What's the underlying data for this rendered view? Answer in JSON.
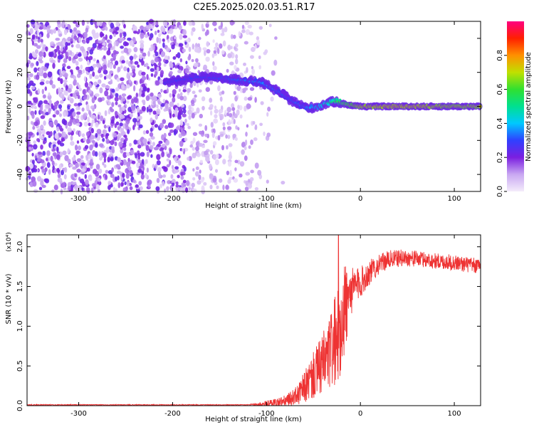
{
  "title": "C2E5.2025.020.03.51.R17",
  "chart_data": [
    {
      "type": "heatmap",
      "xlabel": "Height of straight line (km)",
      "ylabel": "Frequency (Hz)",
      "xlim": [
        -355,
        128
      ],
      "ylim": [
        -50,
        50
      ],
      "xticks": [
        -300,
        -200,
        -100,
        0,
        100
      ],
      "yticks": [
        -40,
        -20,
        0,
        20,
        40
      ],
      "colorbar": {
        "label": "Normalized spectral amplitude",
        "range": [
          0,
          1
        ],
        "ticks": [
          "0.0",
          "0.2",
          "0.4",
          "0.6",
          "0.8"
        ],
        "colors": [
          "#f4ecfb",
          "#c9a8f2",
          "#7b1fe0",
          "#3040ff",
          "#00c8ff",
          "#00e090",
          "#30e030",
          "#c0e000",
          "#ff9000",
          "#ff2000",
          "#ff0080"
        ]
      },
      "noise_region": {
        "x": [
          -355,
          -100
        ],
        "amplitude_level": 0.2
      },
      "signal_track": {
        "x": [
          -208,
          -175,
          -160,
          -140,
          -120,
          -105,
          -95,
          -85,
          -75,
          -65,
          -55,
          -45,
          -35,
          -25,
          -15,
          0,
          30,
          60,
          90,
          128
        ],
        "y": [
          14,
          17,
          17,
          16,
          15,
          14,
          11,
          8,
          4,
          1,
          -1,
          0,
          2,
          3,
          1,
          0,
          0,
          0,
          0,
          0
        ],
        "amplitude": [
          0.3,
          0.3,
          0.3,
          0.32,
          0.35,
          0.38,
          0.35,
          0.32,
          0.3,
          0.35,
          0.4,
          0.45,
          0.5,
          0.6,
          0.7,
          0.82,
          0.85,
          0.85,
          0.8,
          0.8
        ]
      }
    },
    {
      "type": "line",
      "xlabel": "Height of straight line (km)",
      "ylabel": "SNR (10 * v/v)",
      "y_multiplier": "(x10⁴)",
      "xlim": [
        -355,
        128
      ],
      "ylim": [
        0,
        2.15
      ],
      "xticks": [
        -300,
        -200,
        -100,
        0,
        100
      ],
      "yticks": [
        "0.0",
        "0.5",
        "1.0",
        "1.5",
        "2.0"
      ],
      "color": "#ee3333",
      "envelope": {
        "x": [
          -355,
          -120,
          -100,
          -80,
          -65,
          -55,
          -45,
          -35,
          -25,
          -18,
          -12,
          -5,
          0,
          10,
          20,
          30,
          45,
          60,
          80,
          100,
          128
        ],
        "y": [
          0.01,
          0.01,
          0.02,
          0.05,
          0.15,
          0.3,
          0.45,
          0.6,
          0.85,
          1.2,
          1.4,
          1.5,
          1.55,
          1.68,
          1.78,
          1.84,
          1.86,
          1.85,
          1.82,
          1.8,
          1.75
        ]
      },
      "noise_amplitude": {
        "x": [
          -355,
          -120,
          -70,
          -55,
          -45,
          -35,
          -25,
          -18,
          -10,
          0,
          20,
          60,
          128
        ],
        "y": [
          0.005,
          0.005,
          0.1,
          0.25,
          0.35,
          0.45,
          0.6,
          0.7,
          0.3,
          0.2,
          0.12,
          0.1,
          0.1
        ]
      }
    }
  ]
}
